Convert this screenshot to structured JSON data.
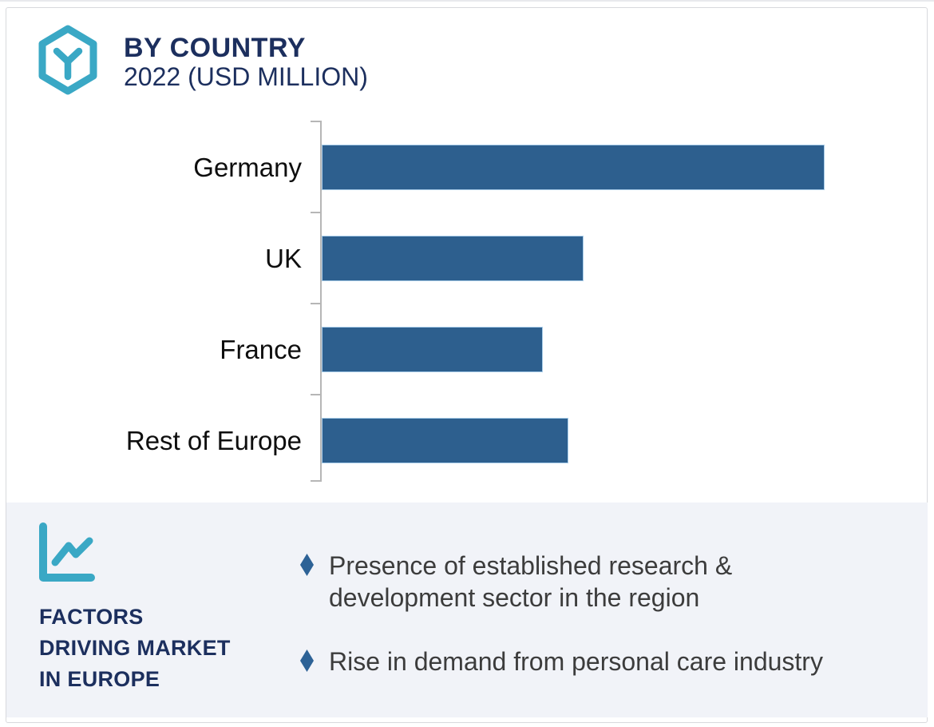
{
  "header": {
    "title": "BY COUNTRY",
    "subtitle": "2022 (USD MILLION)",
    "logo_icon": "hexagon-box-logo-icon"
  },
  "chart_data": {
    "type": "bar",
    "orientation": "horizontal",
    "title": "BY COUNTRY",
    "subtitle": "2022 (USD MILLION)",
    "categories": [
      "Germany",
      "UK",
      "France",
      "Rest of Europe"
    ],
    "values": [
      100,
      52,
      44,
      49
    ],
    "values_note": "no numeric axis or data labels shown; values are relative bar lengths with Germany = 100",
    "xlabel": "",
    "ylabel": "",
    "xlim": [
      0,
      120
    ],
    "grid": false,
    "legend": "none",
    "axis_style": "left vertical axis with small category ticks, unlabeled"
  },
  "factors": {
    "icon": "line-chart-icon",
    "heading": "FACTORS\nDRIVING MARKET\nIN EUROPE",
    "bullet_icon": "diamond-bullet-icon",
    "bullets": [
      "Presence of established research &\ndevelopment sector in the region",
      "Rise in demand from personal care industry"
    ]
  },
  "colors": {
    "bar": "#2d5f8e",
    "bar_border": "#a9cde9",
    "navy": "#1c2f5e",
    "teal": "#3aa8c5",
    "panel_bg": "#f1f3f8",
    "diamond": "#2d6296",
    "body_text": "#3c3c3c",
    "axis": "#b6b6b6"
  }
}
